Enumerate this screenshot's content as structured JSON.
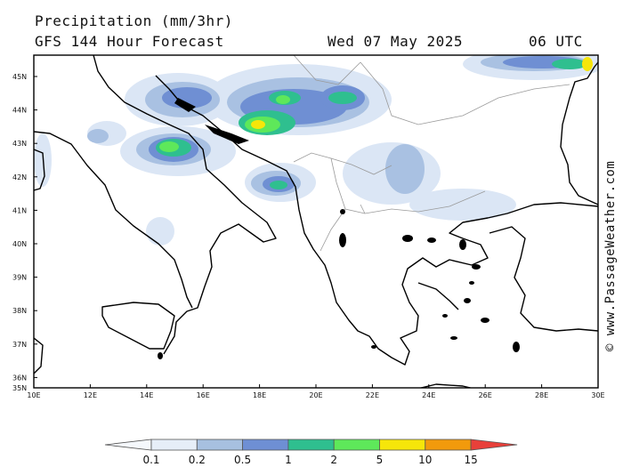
{
  "header": {
    "title": "Precipitation (mm/3hr)",
    "subtitle": "GFS 144 Hour Forecast",
    "date": "Wed 07 May 2025",
    "utc": "06 UTC"
  },
  "credit": "© www.PassageWeather.com",
  "map": {
    "lat_labels": [
      "45N",
      "44N",
      "43N",
      "42N",
      "41N",
      "40N",
      "39N",
      "38N",
      "37N",
      "36N",
      "35N"
    ],
    "lon_labels": [
      "10E",
      "12E",
      "14E",
      "16E",
      "18E",
      "20E",
      "22E",
      "24E",
      "26E",
      "28E",
      "30E"
    ]
  },
  "legend": {
    "colors": [
      "#e6eef8",
      "#a7c0e0",
      "#6e8fd4",
      "#2fbf8f",
      "#5ee85a",
      "#f6e60a",
      "#f29a0c",
      "#e8403a"
    ],
    "labels": [
      "0.1",
      "0.2",
      "0.5",
      "1",
      "2",
      "5",
      "10",
      "15"
    ]
  }
}
